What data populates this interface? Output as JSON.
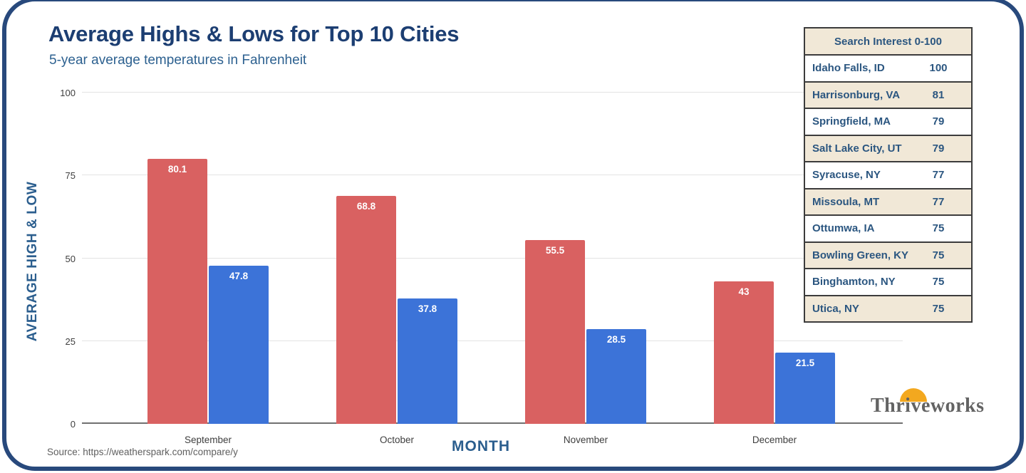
{
  "header": {
    "title": "Average Highs & Lows for Top 10 Cities",
    "subtitle": "5-year average temperatures in Fahrenheit"
  },
  "chart_data": {
    "type": "bar",
    "categories": [
      "September",
      "October",
      "November",
      "December"
    ],
    "series": [
      {
        "name": "Average High",
        "color": "#d96161",
        "values": [
          80.1,
          68.8,
          55.5,
          43
        ]
      },
      {
        "name": "Average Low",
        "color": "#3c73d8",
        "values": [
          47.8,
          37.8,
          28.5,
          21.5
        ]
      }
    ],
    "title": "Average Highs & Lows for Top 10 Cities",
    "xlabel": "MONTH",
    "ylabel": "AVERAGE HIGH & LOW",
    "ylim": [
      0,
      100
    ],
    "yticks": [
      0,
      25,
      50,
      75,
      100
    ],
    "grid": true,
    "legend": false,
    "bar_value_labels": [
      "80.1",
      "47.8",
      "68.8",
      "37.8",
      "55.5",
      "28.5",
      "43",
      "21.5"
    ]
  },
  "table": {
    "header": "Search Interest 0-100",
    "rows": [
      {
        "city": "Idaho Falls, ID",
        "value": "100"
      },
      {
        "city": "Harrisonburg, VA",
        "value": "81"
      },
      {
        "city": "Springfield, MA",
        "value": "79"
      },
      {
        "city": "Salt Lake City, UT",
        "value": "79"
      },
      {
        "city": "Syracuse, NY",
        "value": "77"
      },
      {
        "city": "Missoula, MT",
        "value": "77"
      },
      {
        "city": "Ottumwa, IA",
        "value": "75"
      },
      {
        "city": "Bowling Green, KY",
        "value": "75"
      },
      {
        "city": "Binghamton, NY",
        "value": "75"
      },
      {
        "city": "Utica, NY",
        "value": "75"
      }
    ]
  },
  "source": "Source: https://weatherspark.com/compare/y",
  "logo": {
    "text": "Thriveworks"
  },
  "colors": {
    "high_bar": "#d96161",
    "low_bar": "#3c73d8",
    "title": "#1c3e72",
    "subtitle": "#2d6190",
    "table_text": "#2b5680",
    "table_beige": "#f1e8d7",
    "frame": "#28497c",
    "sun": "#f3a81f"
  }
}
